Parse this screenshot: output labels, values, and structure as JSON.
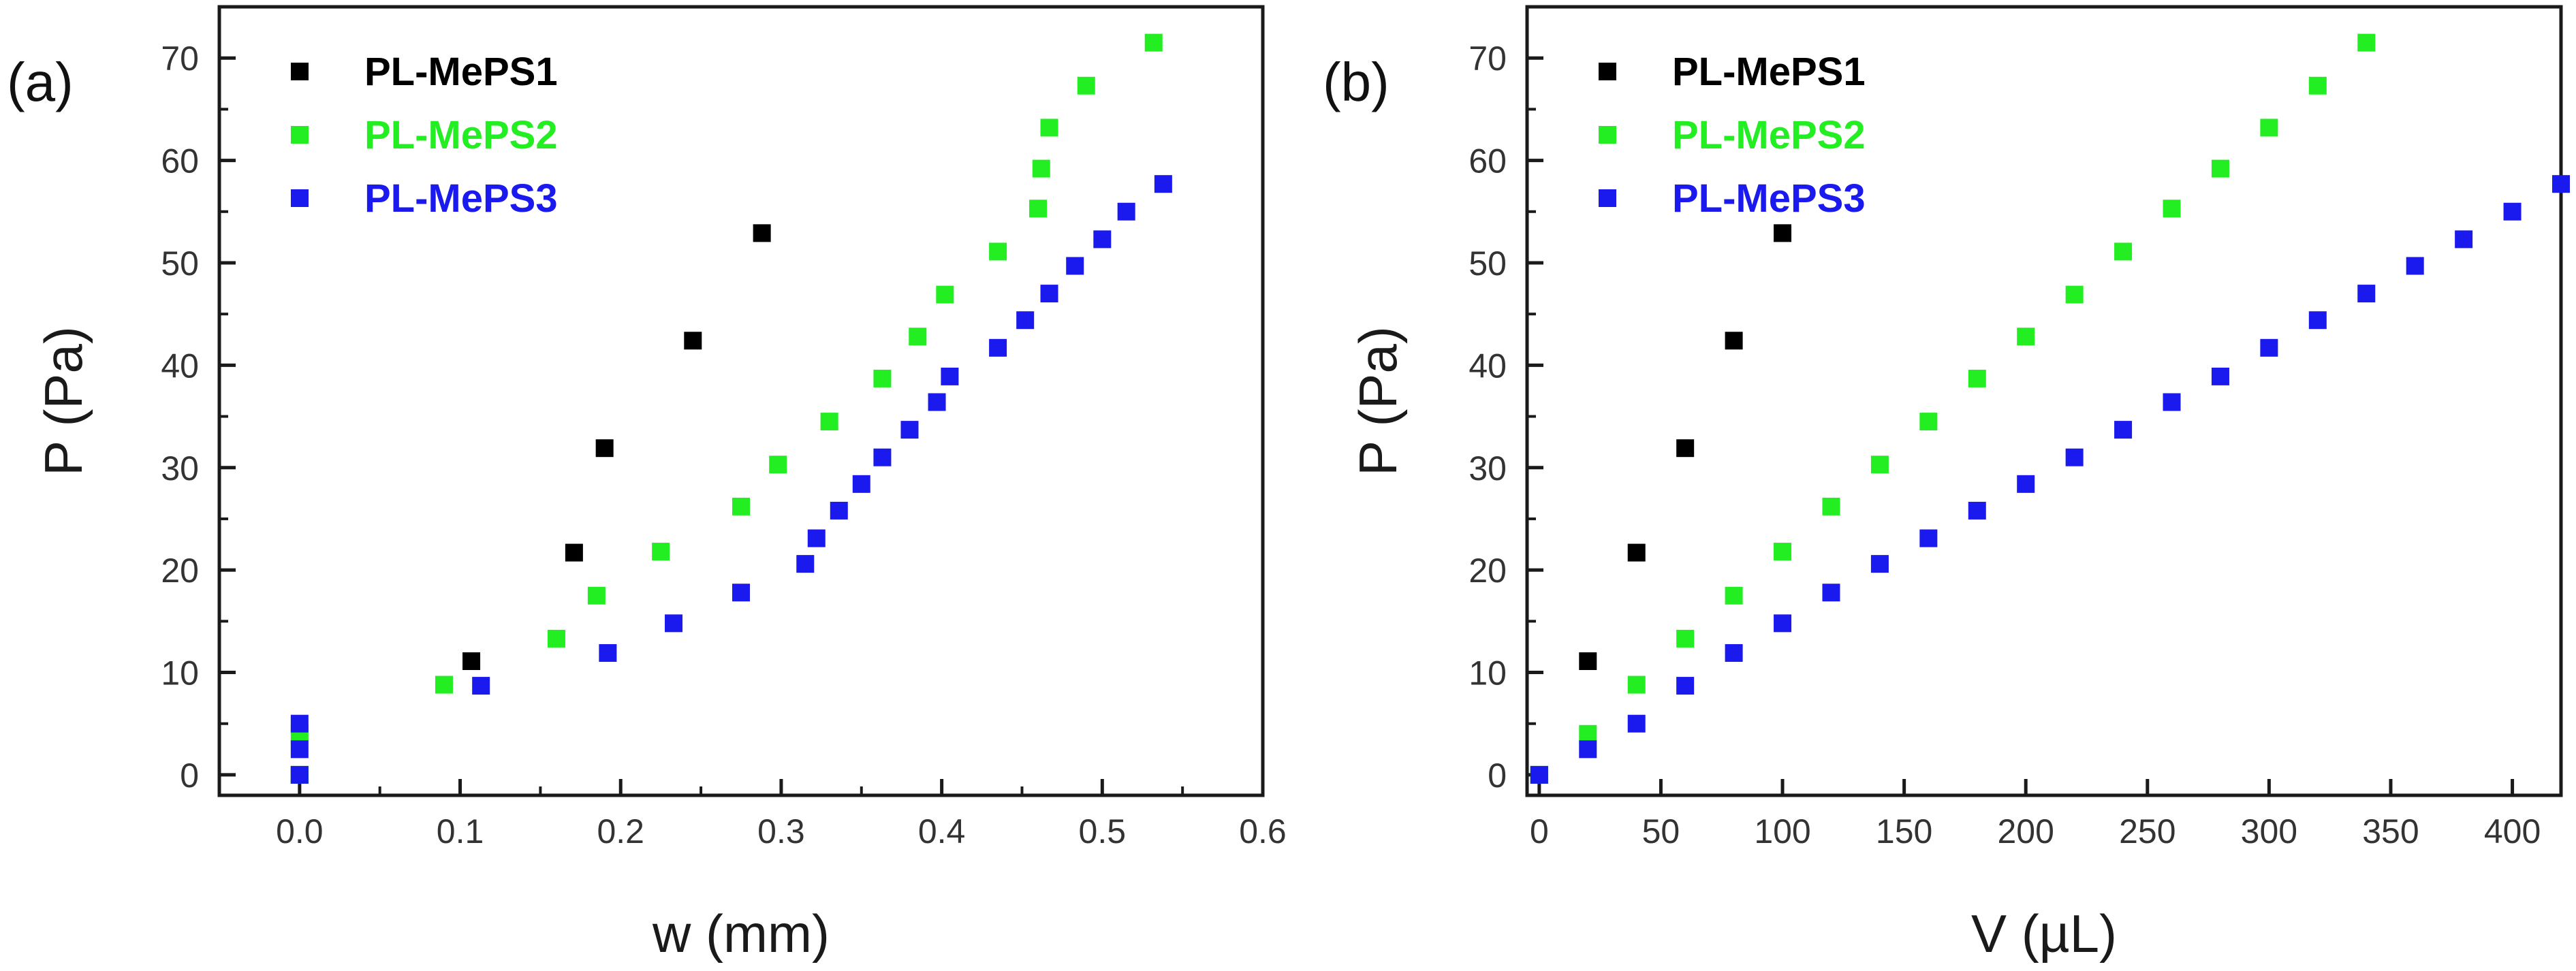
{
  "chart_data": [
    {
      "type": "scatter",
      "panel_label": "(a)",
      "xlabel": "w (mm)",
      "ylabel": "P (Pa)",
      "xlim": [
        -0.05,
        0.6
      ],
      "ylim": [
        -2,
        75
      ],
      "xticks": [
        "0.0",
        "0.1",
        "0.2",
        "0.3",
        "0.4",
        "0.5",
        "0.6"
      ],
      "yticks": [
        "0",
        "10",
        "20",
        "30",
        "40",
        "50",
        "60",
        "70"
      ],
      "legend_position": "top-left",
      "grid": false,
      "series": [
        {
          "name": "PL-MePS1",
          "color": "#000000",
          "points": [
            [
              0.0,
              0.0
            ],
            [
              0.107,
              11.1
            ],
            [
              0.171,
              21.7
            ],
            [
              0.19,
              31.9
            ],
            [
              0.245,
              42.4
            ],
            [
              0.288,
              52.9
            ]
          ]
        },
        {
          "name": "PL-MePS2",
          "color": "#22ee22",
          "points": [
            [
              0.0,
              0.0
            ],
            [
              0.0,
              4.0
            ],
            [
              0.09,
              8.8
            ],
            [
              0.16,
              13.3
            ],
            [
              0.185,
              17.5
            ],
            [
              0.225,
              21.8
            ],
            [
              0.275,
              26.2
            ],
            [
              0.298,
              30.3
            ],
            [
              0.33,
              34.5
            ],
            [
              0.363,
              38.7
            ],
            [
              0.385,
              42.8
            ],
            [
              0.402,
              46.9
            ],
            [
              0.435,
              51.1
            ],
            [
              0.46,
              55.3
            ],
            [
              0.462,
              59.2
            ],
            [
              0.467,
              63.2
            ],
            [
              0.49,
              67.3
            ],
            [
              0.532,
              71.5
            ]
          ]
        },
        {
          "name": "PL-MePS3",
          "color": "#1a1aee",
          "points": [
            [
              0.0,
              0.0
            ],
            [
              0.0,
              2.5
            ],
            [
              0.0,
              5.0
            ],
            [
              0.113,
              8.7
            ],
            [
              0.192,
              11.9
            ],
            [
              0.233,
              14.8
            ],
            [
              0.275,
              17.8
            ],
            [
              0.315,
              20.6
            ],
            [
              0.322,
              23.1
            ],
            [
              0.336,
              25.8
            ],
            [
              0.35,
              28.4
            ],
            [
              0.363,
              31.0
            ],
            [
              0.38,
              33.7
            ],
            [
              0.397,
              36.4
            ],
            [
              0.405,
              38.9
            ],
            [
              0.435,
              41.7
            ],
            [
              0.452,
              44.4
            ],
            [
              0.467,
              47.0
            ],
            [
              0.483,
              49.7
            ],
            [
              0.5,
              52.3
            ],
            [
              0.515,
              55.0
            ],
            [
              0.538,
              57.7
            ]
          ]
        }
      ]
    },
    {
      "type": "scatter",
      "panel_label": "(b)",
      "xlabel": "V (µL)",
      "ylabel": "P (Pa)",
      "xlim": [
        -5,
        420
      ],
      "ylim": [
        -2,
        75
      ],
      "xticks": [
        "0",
        "50",
        "100",
        "150",
        "200",
        "250",
        "300",
        "350",
        "400"
      ],
      "yticks": [
        "0",
        "10",
        "20",
        "30",
        "40",
        "50",
        "60",
        "70"
      ],
      "legend_position": "top-left",
      "grid": false,
      "series": [
        {
          "name": "PL-MePS1",
          "color": "#000000",
          "points": [
            [
              0,
              0.0
            ],
            [
              20,
              11.1
            ],
            [
              40,
              21.7
            ],
            [
              60,
              31.9
            ],
            [
              80,
              42.4
            ],
            [
              100,
              52.9
            ]
          ]
        },
        {
          "name": "PL-MePS2",
          "color": "#22ee22",
          "points": [
            [
              0,
              0.0
            ],
            [
              20,
              4.0
            ],
            [
              40,
              8.8
            ],
            [
              60,
              13.3
            ],
            [
              80,
              17.5
            ],
            [
              100,
              21.8
            ],
            [
              120,
              26.2
            ],
            [
              140,
              30.3
            ],
            [
              160,
              34.5
            ],
            [
              180,
              38.7
            ],
            [
              200,
              42.8
            ],
            [
              220,
              46.9
            ],
            [
              240,
              51.1
            ],
            [
              260,
              55.3
            ],
            [
              280,
              59.2
            ],
            [
              300,
              63.2
            ],
            [
              320,
              67.3
            ],
            [
              340,
              71.5
            ]
          ]
        },
        {
          "name": "PL-MePS3",
          "color": "#1a1aee",
          "points": [
            [
              0,
              0.0
            ],
            [
              20,
              2.5
            ],
            [
              40,
              5.0
            ],
            [
              60,
              8.7
            ],
            [
              80,
              11.9
            ],
            [
              100,
              14.8
            ],
            [
              120,
              17.8
            ],
            [
              140,
              20.6
            ],
            [
              160,
              23.1
            ],
            [
              180,
              25.8
            ],
            [
              200,
              28.4
            ],
            [
              220,
              31.0
            ],
            [
              240,
              33.7
            ],
            [
              260,
              36.4
            ],
            [
              280,
              38.9
            ],
            [
              300,
              41.7
            ],
            [
              320,
              44.4
            ],
            [
              340,
              47.0
            ],
            [
              360,
              49.7
            ],
            [
              380,
              52.3
            ],
            [
              400,
              55.0
            ],
            [
              420,
              57.7
            ]
          ]
        }
      ]
    }
  ]
}
